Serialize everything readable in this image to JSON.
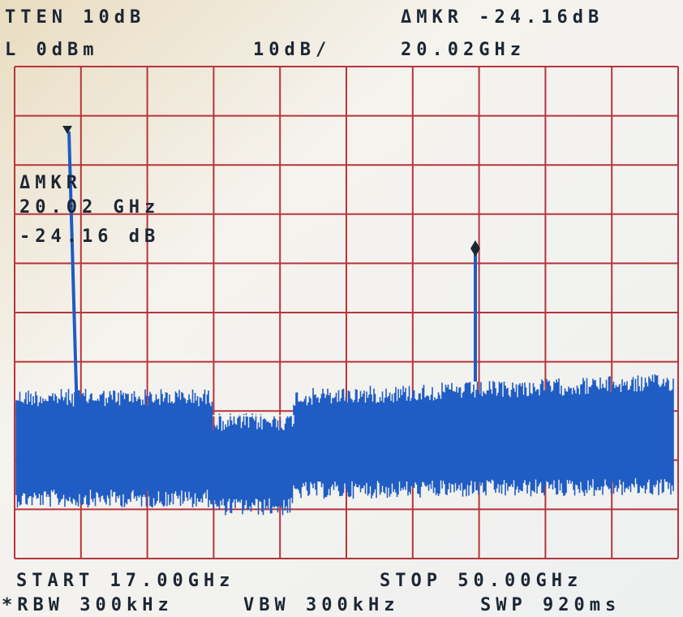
{
  "header": {
    "atten": "TTEN 10dB",
    "delta_marker": "ΔMKR -24.16dB",
    "ref_level": "L 0dBm",
    "scale": "10dB/",
    "marker_freq": "20.02GHz"
  },
  "marker_box": {
    "label": "ΔMKR",
    "freq": "20.02 GHz",
    "delta": "-24.16 dB"
  },
  "footer": {
    "start": "START 17.00GHz",
    "stop": "STOP 50.00GHz",
    "rbw": "*RBW 300kHz",
    "vbw": "VBW 300kHz",
    "sweep": "SWP 920ms"
  }
}
